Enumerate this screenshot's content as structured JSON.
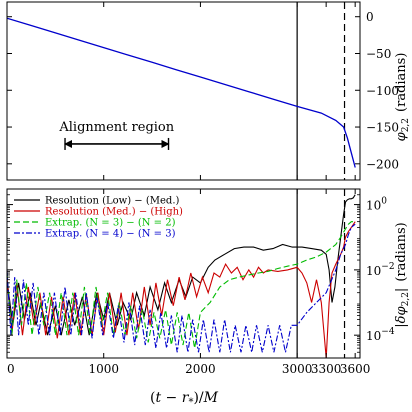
{
  "chart_data": [
    {
      "type": "line",
      "panel": "top",
      "ylabel": "φ2,2 (radians)",
      "ylabel_parts": {
        "symbol": "φ",
        "sub": "2,2",
        "unit": "(radians)"
      },
      "xlim": [
        0,
        3650
      ],
      "ylim": [
        -222,
        20
      ],
      "y_ticks": [
        0,
        -50,
        -100,
        -150,
        -200
      ],
      "y_tick_labels": [
        "0",
        "−50",
        "−100",
        "−150",
        "−200"
      ],
      "y_axis_side": "right",
      "vlines": [
        {
          "x": 3000,
          "style": "solid"
        },
        {
          "x": 3490,
          "style": "dashed"
        }
      ],
      "annotation": {
        "text": "Alignment region",
        "x_start": 600,
        "x_end": 1670,
        "y": -173
      },
      "series": [
        {
          "color": "#0000cc",
          "x": [
            0,
            250,
            500,
            750,
            1000,
            1250,
            1500,
            1750,
            2000,
            2250,
            2500,
            2750,
            3000,
            3250,
            3400,
            3480,
            3520,
            3560,
            3600
          ],
          "y": [
            -2,
            -12,
            -22,
            -32,
            -42,
            -52,
            -62,
            -72,
            -82,
            -92,
            -102,
            -112,
            -122,
            -131,
            -141,
            -150,
            -165,
            -185,
            -205
          ]
        }
      ]
    },
    {
      "type": "line",
      "panel": "bottom",
      "xlabel": "(t − r*)/M",
      "xlabel_parts": {
        "open": "(",
        "t": "t",
        "minus": " − ",
        "r": "r",
        "sub": "*",
        "close": ")/",
        "M": "M"
      },
      "ylabel": "|δφ2,2| (radians)",
      "ylabel_parts": {
        "bar": "|",
        "delta": "δφ",
        "sub": "2,2",
        "unit": "(radians)"
      },
      "xlim": [
        0,
        3650
      ],
      "y_scale": "log",
      "ylim": [
        2e-05,
        3
      ],
      "x_ticks": [
        0,
        1000,
        2000,
        3000,
        3300,
        3600
      ],
      "x_tick_labels": [
        "0",
        "1000",
        "2000",
        "3000",
        "3300",
        "3600"
      ],
      "y_ticks": [
        1,
        0.01,
        0.0001
      ],
      "y_tick_labels": [
        {
          "base": "10",
          "exp": "0"
        },
        {
          "base": "10",
          "exp": "−2"
        },
        {
          "base": "10",
          "exp": "−4"
        }
      ],
      "y_axis_side": "right",
      "vlines": [
        {
          "x": 3000,
          "style": "solid"
        },
        {
          "x": 3490,
          "style": "dashed"
        }
      ],
      "legend": {
        "position": "top-left"
      },
      "series": [
        {
          "name": "Resolution (Low) − (Med.)",
          "color": "#000000",
          "dash": "",
          "x": [
            0,
            60,
            120,
            180,
            240,
            300,
            350,
            420,
            500,
            560,
            640,
            700,
            780,
            850,
            930,
            1000,
            1060,
            1140,
            1200,
            1280,
            1340,
            1420,
            1480,
            1560,
            1630,
            1700,
            1780,
            1850,
            1920,
            2000,
            2080,
            2150,
            2250,
            2350,
            2450,
            2550,
            2650,
            2750,
            2850,
            2950,
            3050,
            3150,
            3250,
            3300,
            3330,
            3360,
            3390,
            3420,
            3450,
            3480,
            3500,
            3520,
            3540,
            3560,
            3580,
            3600
          ],
          "y": [
            0.005,
            0.0002,
            0.004,
            0.0003,
            0.002,
            0.0002,
            0.001,
            0.0001,
            0.0008,
            0.0001,
            0.0012,
            0.0002,
            0.0015,
            0.0001,
            0.002,
            0.0003,
            0.002,
            0.0002,
            0.001,
            0.0003,
            0.002,
            0.0004,
            0.003,
            0.0006,
            0.004,
            0.001,
            0.005,
            0.0015,
            0.006,
            0.004,
            0.012,
            0.02,
            0.03,
            0.045,
            0.05,
            0.05,
            0.04,
            0.045,
            0.06,
            0.05,
            0.05,
            0.045,
            0.04,
            0.03,
            0.01,
            0.001,
            0.003,
            0.02,
            0.1,
            0.5,
            1.2,
            1.4,
            1.5,
            1.5,
            1.6,
            2.0
          ]
        },
        {
          "name": "Resolution (Med.) − (High)",
          "color": "#cc0000",
          "dash": "",
          "x": [
            0,
            50,
            100,
            160,
            220,
            280,
            340,
            400,
            460,
            520,
            580,
            640,
            700,
            760,
            820,
            880,
            940,
            1000,
            1060,
            1120,
            1180,
            1240,
            1300,
            1360,
            1420,
            1480,
            1540,
            1600,
            1660,
            1720,
            1780,
            1840,
            1900,
            1960,
            2020,
            2080,
            2140,
            2200,
            2260,
            2320,
            2380,
            2440,
            2500,
            2550,
            2600,
            2650,
            2700,
            2800,
            2900,
            3000,
            3050,
            3100,
            3150,
            3200,
            3250,
            3280,
            3300,
            3330,
            3360,
            3400,
            3450,
            3480,
            3500,
            3530,
            3560,
            3600
          ],
          "y": [
            0.006,
            0.0001,
            0.004,
            0.0001,
            0.003,
            0.0002,
            0.002,
            0.0001,
            0.0015,
            8e-05,
            0.0015,
            0.0001,
            0.002,
            0.0001,
            0.0018,
            0.0001,
            0.002,
            0.0001,
            0.002,
            0.00012,
            0.002,
            0.0001,
            0.002,
            0.00015,
            0.003,
            0.0002,
            0.004,
            0.0004,
            0.005,
            0.0008,
            0.006,
            0.0012,
            0.008,
            0.0015,
            0.006,
            0.002,
            0.008,
            0.006,
            0.015,
            0.008,
            0.012,
            0.005,
            0.01,
            0.006,
            0.012,
            0.008,
            0.01,
            0.009,
            0.01,
            0.012,
            0.008,
            0.004,
            0.001,
            0.005,
            0.001,
            0.0001,
            2e-05,
            0.001,
            0.008,
            0.015,
            0.03,
            0.05,
            0.1,
            0.15,
            0.2,
            0.3
          ]
        },
        {
          "name": "Extrap. (N = 3) − (N = 2)",
          "color": "#00bb00",
          "dash": "6,3",
          "x": [
            0,
            50,
            100,
            150,
            200,
            260,
            320,
            380,
            440,
            500,
            560,
            620,
            680,
            740,
            800,
            860,
            920,
            980,
            1040,
            1100,
            1160,
            1220,
            1280,
            1340,
            1400,
            1460,
            1520,
            1580,
            1640,
            1700,
            1760,
            1820,
            1880,
            1940,
            2000,
            2100,
            2200,
            2300,
            2400,
            2500,
            2600,
            2700,
            2800,
            2900,
            3000,
            3100,
            3200,
            3300,
            3400,
            3450,
            3500,
            3530,
            3560,
            3600
          ],
          "y": [
            0.008,
            0.0001,
            0.005,
            0.0002,
            0.004,
            0.0001,
            0.003,
            0.0002,
            0.002,
            0.0001,
            0.002,
            0.0001,
            0.002,
            0.0001,
            0.003,
            0.0001,
            0.003,
            0.0002,
            0.002,
            0.0001,
            0.001,
            0.0001,
            0.0008,
            8e-05,
            0.0006,
            6e-05,
            0.0005,
            8e-05,
            0.0006,
            5e-05,
            0.0005,
            5e-05,
            0.0005,
            4e-05,
            0.0005,
            0.001,
            0.003,
            0.005,
            0.006,
            0.007,
            0.008,
            0.009,
            0.011,
            0.013,
            0.015,
            0.02,
            0.025,
            0.035,
            0.06,
            0.1,
            0.18,
            0.25,
            0.3,
            0.3
          ]
        },
        {
          "name": "Extrap. (N = 4) − (N = 3)",
          "color": "#0000cc",
          "dash": "6,2,2,2",
          "x": [
            0,
            40,
            80,
            120,
            170,
            220,
            270,
            330,
            380,
            440,
            490,
            550,
            600,
            660,
            710,
            770,
            820,
            880,
            930,
            990,
            1040,
            1100,
            1150,
            1210,
            1260,
            1320,
            1370,
            1430,
            1480,
            1540,
            1590,
            1650,
            1700,
            1760,
            1810,
            1870,
            1920,
            1980,
            2030,
            2090,
            2140,
            2200,
            2250,
            2310,
            2360,
            2420,
            2470,
            2530,
            2580,
            2640,
            2700,
            2760,
            2820,
            2880,
            2940,
            3000,
            3100,
            3200,
            3300,
            3400,
            3450,
            3500,
            3530,
            3560,
            3600
          ],
          "y": [
            0.01,
            0.0001,
            0.006,
            0.0001,
            0.005,
            0.0002,
            0.004,
            0.0001,
            0.002,
            0.0001,
            0.002,
            0.0001,
            0.003,
            0.0001,
            0.002,
            0.0001,
            0.002,
            8e-05,
            0.0015,
            0.0001,
            0.001,
            8e-05,
            0.0008,
            6e-05,
            0.001,
            5e-05,
            0.0008,
            5e-05,
            0.0006,
            4e-05,
            0.0005,
            4e-05,
            0.0004,
            3e-05,
            0.0004,
            3e-05,
            0.0003,
            3e-05,
            0.0003,
            3e-05,
            0.0003,
            3e-05,
            0.0003,
            3e-05,
            0.0002,
            3e-05,
            0.0002,
            3e-05,
            0.0002,
            3e-05,
            0.0002,
            3e-05,
            0.0002,
            3e-05,
            0.0002,
            0.0002,
            0.0005,
            0.001,
            0.002,
            0.01,
            0.03,
            0.06,
            0.12,
            0.2,
            0.25
          ]
        }
      ]
    }
  ]
}
